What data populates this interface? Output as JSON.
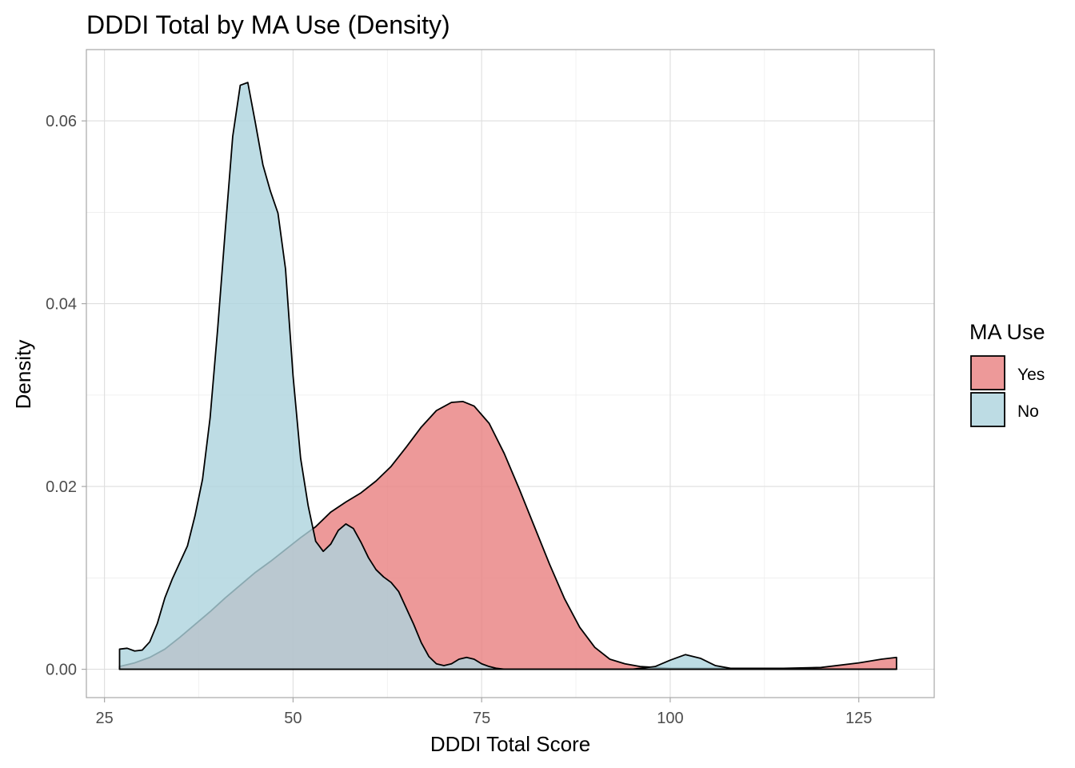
{
  "chart_data": {
    "type": "area",
    "title": "DDDI Total by MA Use (Density)",
    "xlabel": "DDDI Total Score",
    "ylabel": "Density",
    "xlim": [
      22.6,
      135
    ],
    "ylim": [
      -0.0031,
      0.0678
    ],
    "x_ticks": [
      25,
      50,
      75,
      100,
      125
    ],
    "x_tick_labels": [
      "25",
      "50",
      "75",
      "100",
      "125"
    ],
    "y_ticks": [
      0,
      0.02,
      0.04,
      0.06
    ],
    "y_tick_labels": [
      "0.00",
      "0.02",
      "0.04",
      "0.06"
    ],
    "grid": true,
    "legend": {
      "title": "MA Use",
      "placement": "right"
    },
    "series": [
      {
        "name": "Yes",
        "color": "#e8807f",
        "x": [
          27,
          29,
          31,
          33,
          35,
          37,
          39,
          41,
          43,
          45,
          47,
          49,
          51,
          53,
          55,
          57,
          59,
          61,
          63,
          65,
          67,
          69,
          71,
          72.5,
          74,
          76,
          78,
          80,
          82,
          84,
          86,
          88,
          90,
          92,
          94,
          96,
          98,
          100,
          102,
          105,
          110,
          115,
          120,
          125,
          128,
          130
        ],
        "y": [
          0.0003,
          0.0007,
          0.0013,
          0.0022,
          0.0035,
          0.0049,
          0.0063,
          0.0078,
          0.0092,
          0.0106,
          0.0118,
          0.0131,
          0.0144,
          0.0156,
          0.0172,
          0.0183,
          0.0193,
          0.0206,
          0.0222,
          0.0243,
          0.0265,
          0.0283,
          0.0292,
          0.0293,
          0.0288,
          0.0269,
          0.0236,
          0.0197,
          0.0156,
          0.0115,
          0.0077,
          0.0046,
          0.0024,
          0.0011,
          0.0006,
          0.0003,
          0.0002,
          0.0001,
          0.0001,
          0.0001,
          0.0001,
          0.0001,
          0.0002,
          0.0007,
          0.0011,
          0.0013
        ]
      },
      {
        "name": "No",
        "color": "#add3dd",
        "x": [
          27,
          28,
          29,
          30,
          31,
          32,
          33,
          34,
          35,
          36,
          37,
          38,
          39,
          40,
          41,
          42,
          43,
          44,
          45,
          46,
          47,
          48,
          49,
          50,
          51,
          52,
          53,
          54,
          55,
          56,
          57,
          58,
          59,
          60,
          61,
          62,
          63,
          64,
          65,
          66,
          67,
          68,
          69,
          70,
          71,
          72,
          73,
          74,
          75,
          76,
          77,
          78,
          79,
          80,
          81,
          82,
          84,
          86,
          90,
          95,
          98,
          100,
          102,
          104,
          106,
          108,
          110,
          120,
          130
        ],
        "y": [
          0.0022,
          0.0023,
          0.002,
          0.0021,
          0.003,
          0.005,
          0.0078,
          0.0099,
          0.0117,
          0.0135,
          0.0168,
          0.0208,
          0.0275,
          0.0372,
          0.0479,
          0.0583,
          0.0639,
          0.0642,
          0.0598,
          0.0552,
          0.0523,
          0.0499,
          0.0438,
          0.0321,
          0.0231,
          0.0179,
          0.014,
          0.0129,
          0.0137,
          0.0152,
          0.0159,
          0.0154,
          0.0139,
          0.0122,
          0.0109,
          0.0101,
          0.0095,
          0.0085,
          0.0067,
          0.0049,
          0.0029,
          0.0014,
          0.0006,
          0.0004,
          0.0006,
          0.0011,
          0.0013,
          0.0011,
          0.0006,
          0.0003,
          0.0001,
          0.0,
          0.0,
          0.0,
          0.0,
          0.0,
          0.0,
          0.0,
          0.0,
          0.0,
          0.0003,
          0.001,
          0.0016,
          0.0012,
          0.0004,
          0.0001,
          0.0,
          0.0,
          0.0
        ]
      }
    ]
  }
}
